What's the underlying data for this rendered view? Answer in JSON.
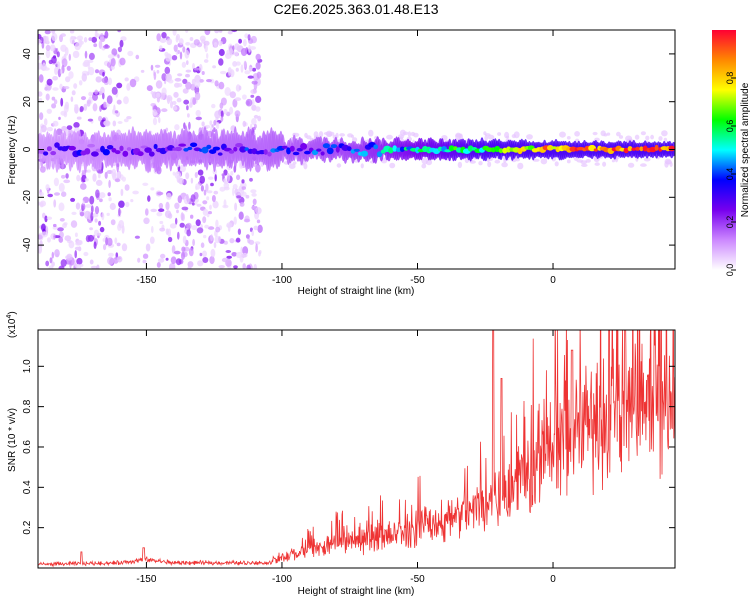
{
  "figure_title": "C2E6.2025.363.01.48.E13",
  "chart_data": [
    {
      "type": "heatmap",
      "title": "C2E6.2025.363.01.48.E13",
      "xlabel": "Height of straight line (km)",
      "ylabel": "Frequency (Hz)",
      "xlim": [
        -190,
        45
      ],
      "ylim": [
        -50,
        50
      ],
      "x_ticks": [
        -150,
        -100,
        -50,
        0
      ],
      "x_tick_labels": [
        "-150",
        "-100",
        "-50",
        "0"
      ],
      "y_ticks": [
        -40,
        -20,
        0,
        20,
        40
      ],
      "y_tick_labels": [
        "-40",
        "-20",
        "0",
        "20",
        "40"
      ],
      "colorbar": {
        "label": "Normalized spectral amplitude",
        "range": [
          0,
          1
        ],
        "ticks": [
          0.0,
          0.2,
          0.4,
          0.6,
          0.8
        ],
        "tick_labels": [
          "0.0",
          "0.2",
          "0.4",
          "0.6",
          "0.8"
        ],
        "colormap": [
          "#ffffff",
          "#cc88ff",
          "#7700ee",
          "#0000ff",
          "#00ffff",
          "#00ff00",
          "#ffff00",
          "#ff8800",
          "#ff0033"
        ]
      },
      "description_series": {
        "noise_region_x": [
          -190,
          -108
        ],
        "noise_gap_x": [
          -158,
          -148
        ],
        "central_band_freq": 0,
        "band_strength": [
          {
            "x": -190,
            "amp": 0.22
          },
          {
            "x": -150,
            "amp": 0.28
          },
          {
            "x": -100,
            "amp": 0.32
          },
          {
            "x": -75,
            "amp": 0.38
          },
          {
            "x": -50,
            "amp": 0.5
          },
          {
            "x": -25,
            "amp": 0.6
          },
          {
            "x": -5,
            "amp": 0.8
          },
          {
            "x": 10,
            "amp": 0.88
          },
          {
            "x": 45,
            "amp": 0.92
          }
        ]
      }
    },
    {
      "type": "line",
      "title": "",
      "xlabel": "Height of straight line (km)",
      "ylabel": "SNR (10 * v/v)",
      "y_scale_label": "(x10",
      "y_scale_exponent": "4",
      "y_scale_close": ")",
      "xlim": [
        -190,
        45
      ],
      "ylim": [
        0,
        1.18
      ],
      "x_ticks": [
        -150,
        -100,
        -50,
        0
      ],
      "x_tick_labels": [
        "-150",
        "-100",
        "-50",
        "0"
      ],
      "y_ticks": [
        0.2,
        0.4,
        0.6,
        0.8,
        1.0
      ],
      "y_tick_labels": [
        "0.2",
        "0.4",
        "0.6",
        "0.8",
        "1.0"
      ],
      "color": "#ee3333",
      "envelope": [
        {
          "x": -190,
          "y": 0.02
        },
        {
          "x": -160,
          "y": 0.03
        },
        {
          "x": -150,
          "y": 0.05
        },
        {
          "x": -140,
          "y": 0.03
        },
        {
          "x": -105,
          "y": 0.03
        },
        {
          "x": -95,
          "y": 0.08
        },
        {
          "x": -80,
          "y": 0.14
        },
        {
          "x": -60,
          "y": 0.18
        },
        {
          "x": -45,
          "y": 0.24
        },
        {
          "x": -30,
          "y": 0.33
        },
        {
          "x": -20,
          "y": 0.42
        },
        {
          "x": -10,
          "y": 0.5
        },
        {
          "x": 0,
          "y": 0.62
        },
        {
          "x": 10,
          "y": 0.78
        },
        {
          "x": 20,
          "y": 0.88
        },
        {
          "x": 30,
          "y": 0.95
        },
        {
          "x": 45,
          "y": 0.98
        }
      ],
      "peaks": [
        {
          "x": -151,
          "y": 0.1
        },
        {
          "x": -174,
          "y": 0.08
        },
        {
          "x": -22,
          "y": 1.18
        },
        {
          "x": -19,
          "y": 0.94
        },
        {
          "x": 7,
          "y": 1.08
        }
      ]
    }
  ]
}
